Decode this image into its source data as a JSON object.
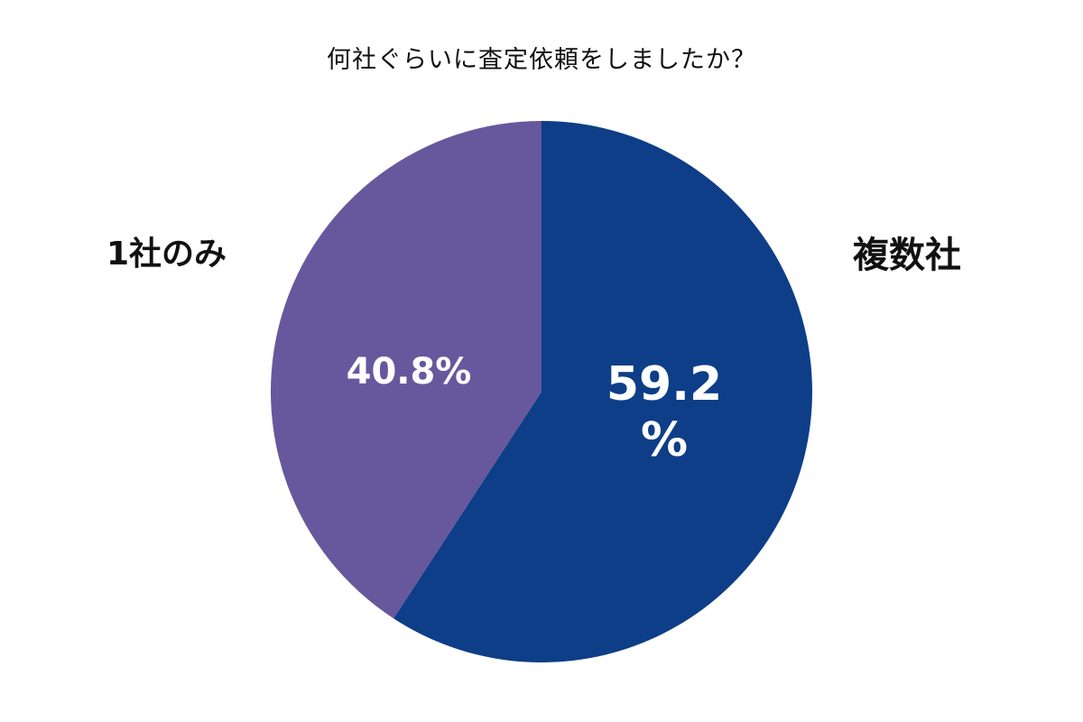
{
  "chart_data": {
    "type": "pie",
    "title": "何社ぐらいに査定依頼をしましたか？",
    "slices": [
      {
        "label": "複数社",
        "value": 59.2,
        "value_label": "59.2",
        "value_label_2": "%",
        "color": "#0d3e87"
      },
      {
        "label": "1社のみ",
        "value": 40.8,
        "value_label": "40.8%",
        "color": "#67589d"
      }
    ],
    "start": "12 o'clock",
    "direction": "clockwise",
    "legend": "none"
  }
}
